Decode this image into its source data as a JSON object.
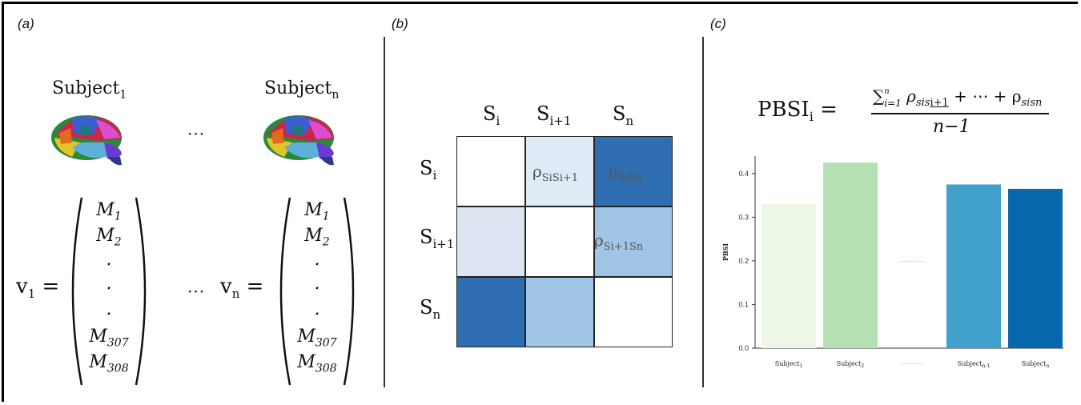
{
  "panels": {
    "a": {
      "label": "(a)",
      "subject_first": {
        "base": "Subject",
        "sub": "1"
      },
      "subject_last": {
        "base": "Subject",
        "sub": "n"
      },
      "ellipsis": "···",
      "vector_first_lhs": {
        "base": "v",
        "sub": "1",
        "eq": " ="
      },
      "vector_last_lhs": {
        "base": "v",
        "sub": "n",
        "eq": " ="
      },
      "vector_entries": [
        {
          "base": "M",
          "sub": "1"
        },
        {
          "base": "M",
          "sub": "2"
        },
        {
          "base": ".",
          "sub": ""
        },
        {
          "base": ".",
          "sub": ""
        },
        {
          "base": ".",
          "sub": ""
        },
        {
          "base": "M",
          "sub": "307"
        },
        {
          "base": "M",
          "sub": "308"
        }
      ]
    },
    "b": {
      "label": "(b)",
      "headers": [
        {
          "base": "S",
          "sub": "i"
        },
        {
          "base": "S",
          "sub": "i+1"
        },
        {
          "base": "S",
          "sub": "n"
        }
      ],
      "cell_colors": [
        [
          "#ffffff",
          "#deebf7",
          "#2f6fb1"
        ],
        [
          "#dde5f3",
          "#ffffff",
          "#a1c5e6"
        ],
        [
          "#2f6fb1",
          "#a1c5e6",
          "#ffffff"
        ]
      ],
      "cell_labels": {
        "r0c1": {
          "base": "ρ",
          "sub": "SiSi+1"
        },
        "r0c2": {
          "base": "ρ",
          "sub": "SiSn"
        },
        "r1c2": {
          "base": "ρ",
          "sub": "Si+1Sn"
        }
      }
    },
    "c": {
      "label": "(c)",
      "formula": {
        "lhs_base": "PBSI",
        "lhs_sub": "i",
        "equals": "=",
        "sum_symbol": "∑",
        "sum_sub": "i=1",
        "sum_sup": "n",
        "numerator_rest_1": "ρ",
        "rho_sub_1": "sis",
        "rho_sub_2": "i+1",
        "numerator_rest_2": "+ ⋯ + ρ",
        "rho_sub_3": "sisn",
        "denominator": "n−1"
      }
    }
  },
  "chart_data": {
    "type": "bar",
    "ylabel": "PBSI",
    "ylim": [
      0,
      0.44
    ],
    "yticks": [
      0.0,
      0.1,
      0.2,
      0.3,
      0.4
    ],
    "ytick_labels": [
      "0.0",
      "0.1",
      "0.2",
      "0.3",
      "0.4"
    ],
    "gap_marker": "·········",
    "bars": [
      {
        "label_base": "Subject",
        "label_sub": "1",
        "value": 0.33,
        "color": "#edf7e6"
      },
      {
        "label_base": "Subject",
        "label_sub": "2",
        "value": 0.425,
        "color": "#b5e0b3"
      },
      {
        "label_base": "Subject",
        "label_sub": "n-1",
        "value": 0.375,
        "color": "#42a0cc"
      },
      {
        "label_base": "Subject",
        "label_sub": "n",
        "value": 0.365,
        "color": "#0868ac"
      }
    ]
  }
}
